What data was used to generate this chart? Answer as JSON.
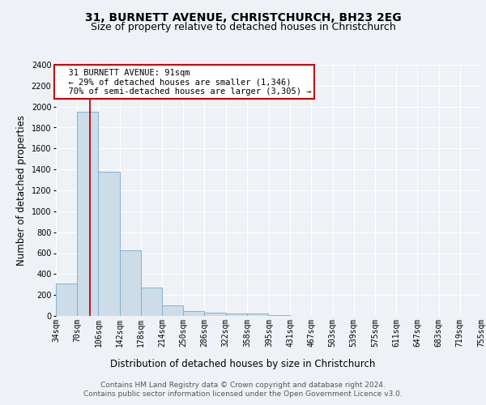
{
  "title": "31, BURNETT AVENUE, CHRISTCHURCH, BH23 2EG",
  "subtitle": "Size of property relative to detached houses in Christchurch",
  "xlabel": "Distribution of detached houses by size in Christchurch",
  "ylabel": "Number of detached properties",
  "bar_values": [
    310,
    1950,
    1380,
    630,
    270,
    100,
    50,
    30,
    20,
    20,
    5,
    3,
    2,
    2,
    2,
    1,
    1,
    0,
    0,
    0
  ],
  "bin_edges": [
    34,
    70,
    106,
    142,
    178,
    214,
    250,
    286,
    322,
    358,
    395,
    431,
    467,
    503,
    539,
    575,
    611,
    647,
    683,
    719,
    755
  ],
  "tick_labels": [
    "34sqm",
    "70sqm",
    "106sqm",
    "142sqm",
    "178sqm",
    "214sqm",
    "250sqm",
    "286sqm",
    "322sqm",
    "358sqm",
    "395sqm",
    "431sqm",
    "467sqm",
    "503sqm",
    "539sqm",
    "575sqm",
    "611sqm",
    "647sqm",
    "683sqm",
    "719sqm",
    "755sqm"
  ],
  "bar_color": "#ccdce8",
  "bar_edge_color": "#7aaac8",
  "red_line_x": 91,
  "annotation_text": "  31 BURNETT AVENUE: 91sqm\n  ← 29% of detached houses are smaller (1,346)\n  70% of semi-detached houses are larger (3,305) →",
  "annotation_box_color": "#ffffff",
  "annotation_border_color": "#cc0000",
  "ylim": [
    0,
    2400
  ],
  "yticks": [
    0,
    200,
    400,
    600,
    800,
    1000,
    1200,
    1400,
    1600,
    1800,
    2000,
    2200,
    2400
  ],
  "footer_text": "Contains HM Land Registry data © Crown copyright and database right 2024.\nContains public sector information licensed under the Open Government Licence v3.0.",
  "bg_color": "#eef2f6",
  "plot_bg_color": "#eef2f6",
  "grid_color": "#ffffff",
  "title_fontsize": 10,
  "subtitle_fontsize": 9,
  "label_fontsize": 8.5,
  "tick_fontsize": 7,
  "footer_fontsize": 6.5,
  "annot_fontsize": 7.5
}
